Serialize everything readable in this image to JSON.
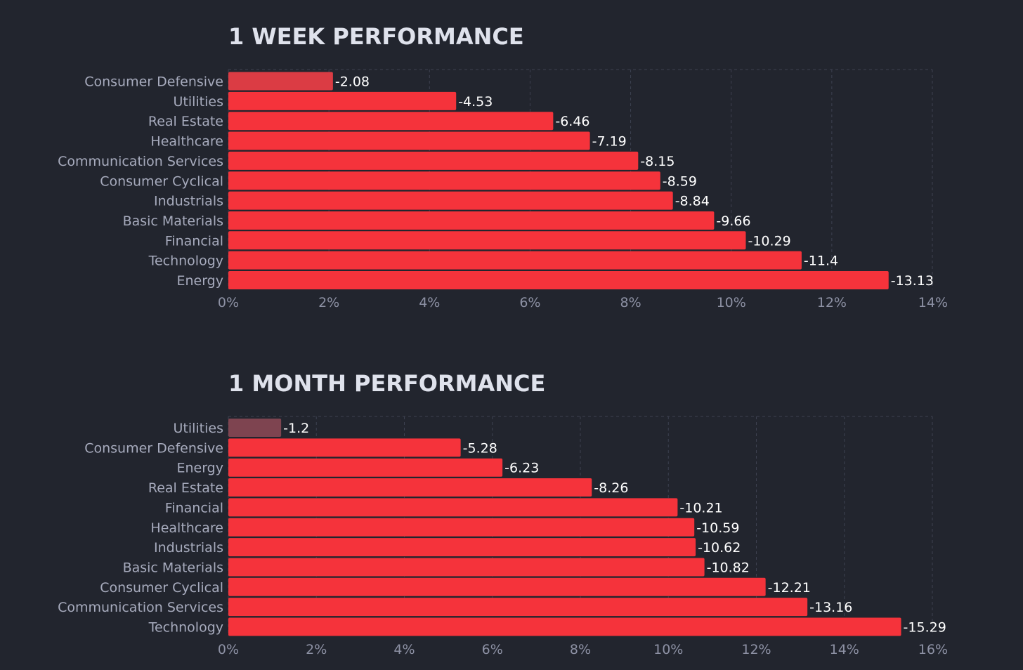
{
  "chart_data": [
    {
      "type": "bar",
      "orientation": "horizontal",
      "title": "1 WEEK PERFORMANCE",
      "categories": [
        "Consumer Defensive",
        "Utilities",
        "Real Estate",
        "Healthcare",
        "Communication Services",
        "Consumer Cyclical",
        "Industrials",
        "Basic Materials",
        "Financial",
        "Technology",
        "Energy"
      ],
      "values": [
        -2.08,
        -4.53,
        -6.46,
        -7.19,
        -8.15,
        -8.59,
        -8.84,
        -9.66,
        -10.29,
        -11.4,
        -13.13
      ],
      "value_labels": [
        "-2.08",
        "-4.53",
        "-6.46",
        "-7.19",
        "-8.15",
        "-8.59",
        "-8.84",
        "-9.66",
        "-10.29",
        "-11.4",
        "-13.13"
      ],
      "xlim": [
        0,
        14
      ],
      "x_ticks": [
        "0%",
        "2%",
        "4%",
        "6%",
        "8%",
        "10%",
        "12%",
        "14%"
      ],
      "xlabel": "",
      "ylabel": "",
      "grid": true,
      "bar_color": "#f5333b",
      "first_bar_color": "#db3c44"
    },
    {
      "type": "bar",
      "orientation": "horizontal",
      "title": "1 MONTH PERFORMANCE",
      "categories": [
        "Utilities",
        "Consumer Defensive",
        "Energy",
        "Real Estate",
        "Financial",
        "Healthcare",
        "Industrials",
        "Basic Materials",
        "Consumer Cyclical",
        "Communication Services",
        "Technology"
      ],
      "values": [
        -1.2,
        -5.28,
        -6.23,
        -8.26,
        -10.21,
        -10.59,
        -10.62,
        -10.82,
        -12.21,
        -13.16,
        -15.29
      ],
      "value_labels": [
        "-1.2",
        "-5.28",
        "-6.23",
        "-8.26",
        "-10.21",
        "-10.59",
        "-10.62",
        "-10.82",
        "-12.21",
        "-13.16",
        "-15.29"
      ],
      "xlim": [
        0,
        16
      ],
      "x_ticks": [
        "0%",
        "2%",
        "4%",
        "6%",
        "8%",
        "10%",
        "12%",
        "14%",
        "16%"
      ],
      "xlabel": "",
      "ylabel": "",
      "grid": true,
      "bar_color": "#f5333b",
      "first_bar_color": "#7e4450"
    }
  ],
  "colors": {
    "background": "#22252e",
    "title": "#dfe2ec",
    "category_label": "#a7abbd",
    "value_label": "#ffffff",
    "tick_label": "#8d91a4",
    "grid": "#3d4150"
  }
}
